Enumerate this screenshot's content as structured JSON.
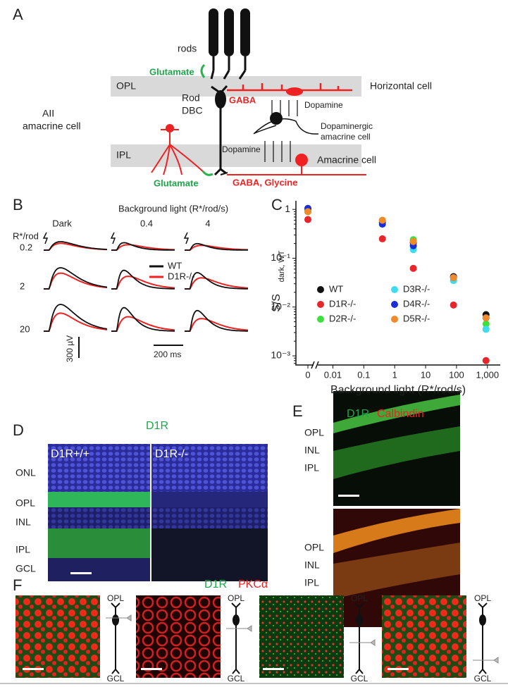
{
  "panel_letters": [
    "A",
    "B",
    "C",
    "D",
    "E",
    "F"
  ],
  "panel_a": {
    "rods": "rods",
    "opl": "OPL",
    "ipl": "IPL",
    "glutamate_top": "Glutamate",
    "rod_dbc": [
      "Rod",
      "DBC"
    ],
    "gaba": "GABA",
    "horizontal_cell": "Horizontal cell",
    "dopamine_top": "Dopamine",
    "dopaminergic": [
      "Dopaminergic",
      "amacrine cell"
    ],
    "aii": [
      "AII",
      "amacrine cell"
    ],
    "dopamine_bottom": "Dopamine",
    "amacrine_cell": "Amacrine cell",
    "glutamate_bottom": "Glutamate",
    "gaba_glycine": "GABA, Glycine"
  },
  "panel_b": {
    "conditions_title": "Background light (R*/rod/s)",
    "conditions": [
      "Dark",
      "0.4",
      "4"
    ],
    "intensity_label": "R*/rod",
    "intensities": [
      "0.2",
      "2",
      "20"
    ],
    "legend": [
      "WT",
      "D1R-/-"
    ],
    "scale_y": "300 µV",
    "scale_x": "200 ms"
  },
  "chart_data": {
    "type": "scatter",
    "x_label": "Background light (R*/rod/s)",
    "y_label": "S/S",
    "y_label_sub": "dark, WT",
    "log_x": true,
    "log_y": true,
    "x": [
      0,
      0.4,
      4,
      80,
      900
    ],
    "xlim": [
      0.004,
      2000
    ],
    "ylim": [
      0.00065,
      1.5
    ],
    "xticks": [
      0,
      0.01,
      0.1,
      1,
      10,
      100,
      {
        "value": 1000,
        "label": "1,000"
      }
    ],
    "yticks": [
      1,
      {
        "value": 0.1,
        "label": "10⁻¹"
      },
      {
        "value": 0.01,
        "label": "10⁻²"
      },
      {
        "value": 0.001,
        "label": "10⁻³"
      }
    ],
    "series": [
      {
        "name": "WT",
        "color": "#111111",
        "values": [
          1.0,
          0.55,
          0.21,
          0.042,
          0.007
        ]
      },
      {
        "name": "D1R-/-",
        "color": "#e8262a",
        "values": [
          0.62,
          0.25,
          0.062,
          0.011,
          0.0008
        ]
      },
      {
        "name": "D2R-/-",
        "color": "#3ee03e",
        "values": [
          0.95,
          0.6,
          0.24,
          0.035,
          0.0045
        ]
      },
      {
        "name": "D3R-/-",
        "color": "#3fdcef",
        "values": [
          0.9,
          0.5,
          0.15,
          0.035,
          0.0035
        ]
      },
      {
        "name": "D4R-/-",
        "color": "#1a2ed8",
        "values": [
          1.05,
          0.5,
          0.18,
          0.04,
          0.006
        ]
      },
      {
        "name": "D5R-/-",
        "color": "#f08a2a",
        "values": [
          0.9,
          0.6,
          0.22,
          0.04,
          0.006
        ]
      }
    ]
  },
  "panel_d": {
    "title": "D1R",
    "genotypes": [
      "D1R+/+",
      "D1R-/-"
    ],
    "layers": [
      "ONL",
      "OPL",
      "INL",
      "IPL",
      "GCL"
    ]
  },
  "panel_e": {
    "title": [
      "D1R",
      "Calbindin"
    ],
    "layers_top": [
      "OPL",
      "INL",
      "IPL"
    ],
    "layers_bottom": [
      "OPL",
      "INL",
      "IPL"
    ]
  },
  "panel_f": {
    "title": [
      "D1R",
      "PKCα"
    ],
    "schematics": [
      [
        "OPL",
        "GCL"
      ],
      [
        "OPL",
        "GCL"
      ],
      [
        "OPL",
        "GCL"
      ],
      [
        "OPL",
        "GCL"
      ]
    ]
  }
}
